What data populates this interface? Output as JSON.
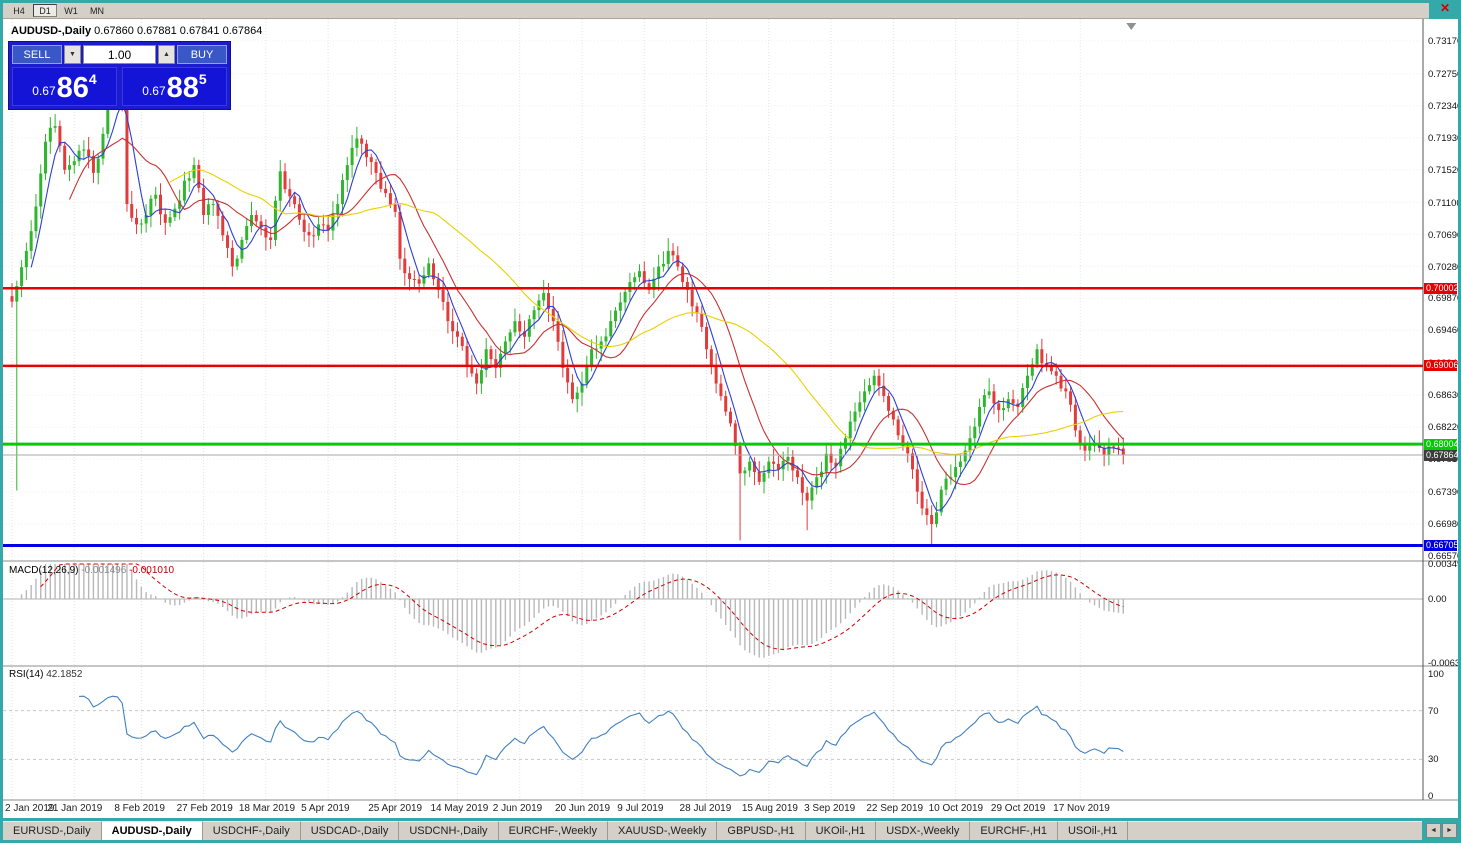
{
  "window": {
    "close_label": "✕"
  },
  "toolbar": {
    "timeframes": [
      {
        "label": "H4",
        "active": false
      },
      {
        "label": "D1",
        "active": true
      },
      {
        "label": "W1",
        "active": false
      },
      {
        "label": "MN",
        "active": false
      }
    ]
  },
  "trade_panel": {
    "sell_label": "SELL",
    "buy_label": "BUY",
    "volume": "1.00",
    "spin_down": "▼",
    "spin_up": "▲",
    "sell_price": {
      "small": "0.67",
      "big": "86",
      "sup": "4"
    },
    "buy_price": {
      "small": "0.67",
      "big": "88",
      "sup": "5"
    }
  },
  "chart": {
    "title_symbol": "AUDUSD-,Daily",
    "ohlc_text": "0.67860 0.67881 0.67841 0.67864"
  },
  "chart_data": {
    "type": "candlestick",
    "symbol": "AUDUSD-",
    "timeframe": "Daily",
    "open": 0.6786,
    "high": 0.67881,
    "low": 0.67841,
    "close": 0.67864,
    "colors": {
      "bull": "#2FB62F",
      "bear": "#E13B3B"
    },
    "price_axis_ticks": [
      "0.73170",
      "0.72750",
      "0.72340",
      "0.71930",
      "0.71520",
      "0.71100",
      "0.70690",
      "0.70280",
      "0.69870",
      "0.69460",
      "0.69040",
      "0.68630",
      "0.68220",
      "0.67810",
      "0.67390",
      "0.66980",
      "0.66570"
    ],
    "date_ticks": [
      {
        "i": 0,
        "label": "2 Jan 2019"
      },
      {
        "i": 13,
        "label": "21 Jan 2019"
      },
      {
        "i": 27,
        "label": "8 Feb 2019"
      },
      {
        "i": 40,
        "label": "27 Feb 2019"
      },
      {
        "i": 53,
        "label": "18 Mar 2019"
      },
      {
        "i": 66,
        "label": "5 Apr 2019"
      },
      {
        "i": 80,
        "label": "25 Apr 2019"
      },
      {
        "i": 93,
        "label": "14 May 2019"
      },
      {
        "i": 106,
        "label": "2 Jun 2019"
      },
      {
        "i": 119,
        "label": "20 Jun 2019"
      },
      {
        "i": 132,
        "label": "9 Jul 2019"
      },
      {
        "i": 145,
        "label": "28 Jul 2019"
      },
      {
        "i": 158,
        "label": "15 Aug 2019"
      },
      {
        "i": 171,
        "label": "3 Sep 2019"
      },
      {
        "i": 184,
        "label": "22 Sep 2019"
      },
      {
        "i": 197,
        "label": "10 Oct 2019"
      },
      {
        "i": 210,
        "label": "29 Oct 2019"
      },
      {
        "i": 223,
        "label": "17 Nov 2019"
      }
    ],
    "hlines": [
      {
        "value": 0.70002,
        "label": "0.70002",
        "color": "#E80000",
        "width": 2.5
      },
      {
        "value": 0.69006,
        "label": "0.69006",
        "color": "#E80000",
        "width": 2.5
      },
      {
        "value": 0.68004,
        "label": "0.68004",
        "color": "#00CC00",
        "width": 3
      },
      {
        "value": 0.66705,
        "label": "0.66705",
        "color": "#0000E8",
        "width": 3
      }
    ],
    "current_price": {
      "value": 0.67864,
      "label": "0.67864",
      "tag_bg": "#3C3C3C"
    },
    "num_candles": 233,
    "candles_waypoints": [
      [
        0,
        0.6983
      ],
      [
        1,
        0.7003
      ],
      [
        3,
        0.7048
      ],
      [
        5,
        0.7105
      ],
      [
        7,
        0.7188
      ],
      [
        9,
        0.7208
      ],
      [
        11,
        0.7152
      ],
      [
        13,
        0.7163
      ],
      [
        15,
        0.7178
      ],
      [
        17,
        0.7148
      ],
      [
        19,
        0.7198
      ],
      [
        20,
        0.7238
      ],
      [
        21,
        0.7258
      ],
      [
        23,
        0.7238
      ],
      [
        24,
        0.7108
      ],
      [
        26,
        0.7082
      ],
      [
        28,
        0.7094
      ],
      [
        30,
        0.712
      ],
      [
        32,
        0.7084
      ],
      [
        34,
        0.7102
      ],
      [
        36,
        0.7138
      ],
      [
        38,
        0.7158
      ],
      [
        40,
        0.7094
      ],
      [
        42,
        0.7108
      ],
      [
        44,
        0.7068
      ],
      [
        46,
        0.7028
      ],
      [
        48,
        0.7062
      ],
      [
        50,
        0.7094
      ],
      [
        52,
        0.7078
      ],
      [
        54,
        0.7062
      ],
      [
        56,
        0.715
      ],
      [
        58,
        0.7118
      ],
      [
        60,
        0.7088
      ],
      [
        62,
        0.7068
      ],
      [
        64,
        0.7082
      ],
      [
        66,
        0.7074
      ],
      [
        68,
        0.7108
      ],
      [
        70,
        0.7158
      ],
      [
        72,
        0.7192
      ],
      [
        74,
        0.7168
      ],
      [
        76,
        0.7148
      ],
      [
        78,
        0.7122
      ],
      [
        80,
        0.7098
      ],
      [
        81,
        0.7038
      ],
      [
        83,
        0.7012
      ],
      [
        85,
        0.7006
      ],
      [
        87,
        0.7032
      ],
      [
        89,
        0.6998
      ],
      [
        91,
        0.6958
      ],
      [
        93,
        0.6938
      ],
      [
        95,
        0.6902
      ],
      [
        97,
        0.6878
      ],
      [
        99,
        0.6922
      ],
      [
        101,
        0.6898
      ],
      [
        103,
        0.6932
      ],
      [
        105,
        0.6958
      ],
      [
        107,
        0.6938
      ],
      [
        109,
        0.6972
      ],
      [
        111,
        0.6994
      ],
      [
        113,
        0.6958
      ],
      [
        115,
        0.6898
      ],
      [
        117,
        0.6858
      ],
      [
        119,
        0.6878
      ],
      [
        121,
        0.6922
      ],
      [
        123,
        0.6932
      ],
      [
        125,
        0.6958
      ],
      [
        127,
        0.6982
      ],
      [
        129,
        0.7008
      ],
      [
        131,
        0.7022
      ],
      [
        133,
        0.6998
      ],
      [
        135,
        0.7028
      ],
      [
        137,
        0.7048
      ],
      [
        139,
        0.7028
      ],
      [
        141,
        0.6998
      ],
      [
        143,
        0.6968
      ],
      [
        145,
        0.6922
      ],
      [
        147,
        0.6878
      ],
      [
        149,
        0.6842
      ],
      [
        151,
        0.6798
      ],
      [
        152,
        0.6763
      ],
      [
        154,
        0.6778
      ],
      [
        156,
        0.6752
      ],
      [
        158,
        0.6778
      ],
      [
        160,
        0.6768
      ],
      [
        162,
        0.6784
      ],
      [
        164,
        0.6758
      ],
      [
        166,
        0.6728
      ],
      [
        168,
        0.6758
      ],
      [
        170,
        0.6788
      ],
      [
        172,
        0.6772
      ],
      [
        174,
        0.6808
      ],
      [
        176,
        0.6842
      ],
      [
        178,
        0.6868
      ],
      [
        180,
        0.6888
      ],
      [
        182,
        0.6862
      ],
      [
        184,
        0.6832
      ],
      [
        186,
        0.6798
      ],
      [
        188,
        0.6768
      ],
      [
        190,
        0.6718
      ],
      [
        192,
        0.6698
      ],
      [
        194,
        0.6742
      ],
      [
        196,
        0.6758
      ],
      [
        198,
        0.6778
      ],
      [
        200,
        0.6808
      ],
      [
        202,
        0.6848
      ],
      [
        204,
        0.6868
      ],
      [
        206,
        0.6844
      ],
      [
        208,
        0.6858
      ],
      [
        210,
        0.6848
      ],
      [
        212,
        0.6888
      ],
      [
        214,
        0.6922
      ],
      [
        216,
        0.6902
      ],
      [
        218,
        0.6888
      ],
      [
        220,
        0.6868
      ],
      [
        222,
        0.6818
      ],
      [
        224,
        0.6792
      ],
      [
        226,
        0.6802
      ],
      [
        228,
        0.6786
      ],
      [
        230,
        0.6796
      ],
      [
        232,
        0.67864
      ]
    ],
    "special_lows": {
      "1": 0.6741,
      "152": 0.6677,
      "166": 0.669,
      "192": 0.667
    },
    "moving_averages": [
      {
        "period": 5,
        "color": "#2A3FD6"
      },
      {
        "period": 13,
        "color": "#C83232"
      },
      {
        "period": 34,
        "color": "#E9D100"
      }
    ],
    "macd": {
      "label": "MACD(12,26,9)",
      "value": "-0.001496",
      "signal_value": "-0.001010",
      "fast": 12,
      "slow": 26,
      "signal": 9,
      "axis": [
        {
          "label": "0.00349",
          "v": 0.00349
        },
        {
          "label": "0.00",
          "v": 0
        },
        {
          "label": "-0.00637",
          "v": -0.00637
        }
      ]
    },
    "rsi": {
      "label": "RSI(14)",
      "value": "42.1852",
      "period": 14,
      "levels": [
        70,
        30
      ],
      "axis": [
        {
          "label": "100",
          "v": 100
        },
        {
          "label": "70",
          "v": 70
        },
        {
          "label": "30",
          "v": 30
        },
        {
          "label": "0",
          "v": 0
        }
      ]
    }
  },
  "tabs": [
    {
      "label": "EURUSD-,Daily",
      "active": false
    },
    {
      "label": "AUDUSD-,Daily",
      "active": true
    },
    {
      "label": "USDCHF-,Daily",
      "active": false
    },
    {
      "label": "USDCAD-,Daily",
      "active": false
    },
    {
      "label": "USDCNH-,Daily",
      "active": false
    },
    {
      "label": "EURCHF-,Weekly",
      "active": false
    },
    {
      "label": "XAUUSD-,Weekly",
      "active": false
    },
    {
      "label": "GBPUSD-,H1",
      "active": false
    },
    {
      "label": "UKOil-,H1",
      "active": false
    },
    {
      "label": "USDX-,Weekly",
      "active": false
    },
    {
      "label": "EURCHF-,H1",
      "active": false
    },
    {
      "label": "USOil-,H1",
      "active": false
    }
  ]
}
